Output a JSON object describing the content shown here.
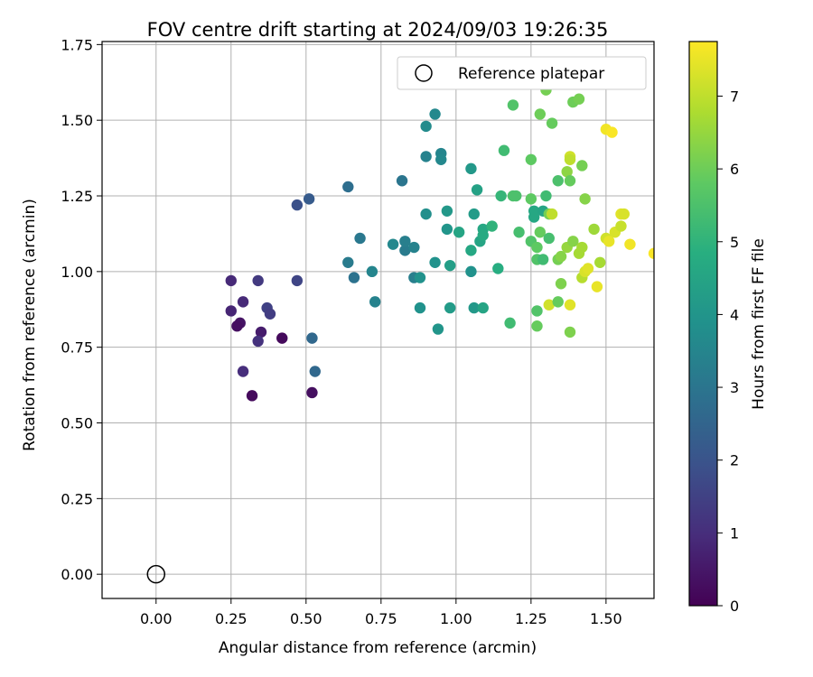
{
  "chart_data": {
    "type": "scatter",
    "title": "FOV centre drift starting at 2024/09/03 19:26:35",
    "xlabel": "Angular distance from reference (arcmin)",
    "ylabel": "Rotation from reference (arcmin)",
    "xlim": [
      -0.18,
      1.66
    ],
    "ylim": [
      -0.08,
      1.76
    ],
    "xticks": [
      {
        "value": 0.0,
        "label": "0.00"
      },
      {
        "value": 0.25,
        "label": "0.25"
      },
      {
        "value": 0.5,
        "label": "0.50"
      },
      {
        "value": 0.75,
        "label": "0.75"
      },
      {
        "value": 1.0,
        "label": "1.00"
      },
      {
        "value": 1.25,
        "label": "1.25"
      },
      {
        "value": 1.5,
        "label": "1.50"
      }
    ],
    "yticks": [
      {
        "value": 0.0,
        "label": "0.00"
      },
      {
        "value": 0.25,
        "label": "0.25"
      },
      {
        "value": 0.5,
        "label": "0.50"
      },
      {
        "value": 0.75,
        "label": "0.75"
      },
      {
        "value": 1.0,
        "label": "1.00"
      },
      {
        "value": 1.25,
        "label": "1.25"
      },
      {
        "value": 1.5,
        "label": "1.50"
      },
      {
        "value": 1.75,
        "label": "1.75"
      }
    ],
    "grid": true,
    "colormap": "viridis",
    "colorbar": {
      "label": "Hours from first FF file",
      "range": [
        0,
        7.75
      ],
      "ticks": [
        {
          "value": 0,
          "label": "0"
        },
        {
          "value": 1,
          "label": "1"
        },
        {
          "value": 2,
          "label": "2"
        },
        {
          "value": 3,
          "label": "3"
        },
        {
          "value": 4,
          "label": "4"
        },
        {
          "value": 5,
          "label": "5"
        },
        {
          "value": 6,
          "label": "6"
        },
        {
          "value": 7,
          "label": "7"
        }
      ]
    },
    "legend": {
      "placement": "top-right",
      "entries": [
        {
          "label": "Reference platepar",
          "marker": "open-circle"
        }
      ]
    },
    "reference_point": {
      "x": 0.0,
      "y": 0.0
    },
    "points": [
      [
        0.25,
        0.97,
        0.9
      ],
      [
        0.25,
        0.87,
        0.8
      ],
      [
        0.28,
        0.83,
        0.4
      ],
      [
        0.27,
        0.82,
        0.3
      ],
      [
        0.29,
        0.9,
        0.9
      ],
      [
        0.34,
        0.97,
        1.3
      ],
      [
        0.37,
        0.88,
        1.5
      ],
      [
        0.38,
        0.86,
        1.4
      ],
      [
        0.35,
        0.8,
        0.6
      ],
      [
        0.34,
        0.77,
        1.1
      ],
      [
        0.29,
        0.67,
        1.0
      ],
      [
        0.32,
        0.59,
        0.2
      ],
      [
        0.42,
        0.78,
        0.2
      ],
      [
        0.47,
        0.97,
        1.6
      ],
      [
        0.47,
        1.22,
        1.9
      ],
      [
        0.51,
        1.24,
        2.2
      ],
      [
        0.52,
        0.78,
        2.6
      ],
      [
        0.52,
        0.6,
        0.3
      ],
      [
        0.53,
        0.67,
        2.6
      ],
      [
        0.64,
        1.28,
        2.8
      ],
      [
        0.64,
        1.03,
        3.2
      ],
      [
        0.66,
        0.98,
        2.9
      ],
      [
        0.68,
        1.11,
        3.1
      ],
      [
        0.72,
        1.0,
        3.5
      ],
      [
        0.73,
        0.9,
        3.4
      ],
      [
        0.79,
        1.09,
        3.6
      ],
      [
        0.82,
        1.3,
        3.0
      ],
      [
        0.83,
        1.07,
        3.2
      ],
      [
        0.83,
        1.1,
        3.3
      ],
      [
        0.86,
        1.08,
        3.4
      ],
      [
        0.86,
        0.98,
        3.3
      ],
      [
        0.88,
        0.98,
        3.9
      ],
      [
        0.88,
        0.88,
        3.9
      ],
      [
        0.9,
        1.48,
        3.7
      ],
      [
        0.9,
        1.19,
        3.8
      ],
      [
        0.9,
        1.38,
        3.4
      ],
      [
        0.93,
        1.52,
        3.6
      ],
      [
        0.93,
        1.03,
        3.9
      ],
      [
        0.94,
        0.81,
        4.0
      ],
      [
        0.95,
        1.39,
        3.5
      ],
      [
        0.95,
        1.37,
        3.6
      ],
      [
        0.97,
        1.2,
        4.1
      ],
      [
        0.97,
        1.14,
        4.0
      ],
      [
        0.98,
        0.88,
        4.2
      ],
      [
        0.98,
        1.02,
        4.3
      ],
      [
        1.01,
        1.13,
        4.5
      ],
      [
        1.05,
        1.34,
        4.1
      ],
      [
        1.05,
        1.07,
        4.6
      ],
      [
        1.05,
        1.0,
        3.9
      ],
      [
        1.06,
        1.19,
        4.2
      ],
      [
        1.06,
        0.88,
        4.1
      ],
      [
        1.07,
        1.27,
        4.4
      ],
      [
        1.08,
        1.1,
        4.5
      ],
      [
        1.09,
        1.14,
        4.6
      ],
      [
        1.09,
        1.12,
        4.7
      ],
      [
        1.09,
        0.88,
        4.5
      ],
      [
        1.12,
        1.15,
        5.0
      ],
      [
        1.14,
        1.01,
        4.8
      ],
      [
        1.15,
        1.25,
        5.1
      ],
      [
        1.16,
        1.4,
        5.3
      ],
      [
        1.18,
        0.83,
        5.3
      ],
      [
        1.19,
        1.25,
        5.5
      ],
      [
        1.19,
        1.55,
        5.6
      ],
      [
        1.2,
        1.25,
        5.5
      ],
      [
        1.21,
        1.13,
        5.4
      ],
      [
        1.25,
        1.24,
        5.8
      ],
      [
        1.25,
        1.37,
        5.8
      ],
      [
        1.25,
        1.1,
        5.6
      ],
      [
        1.26,
        1.18,
        4.6
      ],
      [
        1.26,
        1.2,
        4.6
      ],
      [
        1.27,
        1.04,
        5.6
      ],
      [
        1.27,
        0.87,
        5.6
      ],
      [
        1.27,
        0.82,
        5.9
      ],
      [
        1.27,
        1.08,
        5.8
      ],
      [
        1.28,
        1.13,
        5.9
      ],
      [
        1.28,
        1.52,
        6.0
      ],
      [
        1.29,
        1.2,
        4.5
      ],
      [
        1.29,
        1.04,
        5.3
      ],
      [
        1.3,
        1.25,
        5.3
      ],
      [
        1.3,
        1.6,
        6.1
      ],
      [
        1.31,
        1.19,
        6.1
      ],
      [
        1.31,
        0.89,
        7.2
      ],
      [
        1.31,
        1.11,
        5.4
      ],
      [
        1.32,
        1.19,
        7.0
      ],
      [
        1.32,
        1.49,
        5.9
      ],
      [
        1.34,
        1.3,
        5.5
      ],
      [
        1.34,
        1.04,
        6.1
      ],
      [
        1.34,
        0.9,
        5.9
      ],
      [
        1.35,
        0.96,
        6.2
      ],
      [
        1.35,
        1.05,
        6.3
      ],
      [
        1.37,
        1.08,
        6.5
      ],
      [
        1.37,
        1.33,
        6.4
      ],
      [
        1.38,
        1.38,
        7.2
      ],
      [
        1.38,
        1.37,
        7.0
      ],
      [
        1.38,
        1.3,
        5.9
      ],
      [
        1.38,
        0.8,
        6.2
      ],
      [
        1.38,
        0.89,
        7.4
      ],
      [
        1.39,
        1.1,
        6.3
      ],
      [
        1.39,
        1.56,
        6.0
      ],
      [
        1.41,
        1.57,
        6.1
      ],
      [
        1.41,
        1.06,
        6.7
      ],
      [
        1.42,
        1.35,
        6.1
      ],
      [
        1.42,
        1.08,
        6.7
      ],
      [
        1.42,
        0.98,
        6.9
      ],
      [
        1.43,
        1.24,
        6.3
      ],
      [
        1.43,
        1.0,
        7.3
      ],
      [
        1.44,
        1.01,
        7.4
      ],
      [
        1.46,
        1.14,
        6.6
      ],
      [
        1.47,
        0.95,
        7.5
      ],
      [
        1.48,
        1.03,
        6.7
      ],
      [
        1.5,
        1.47,
        7.6
      ],
      [
        1.5,
        1.11,
        7.2
      ],
      [
        1.51,
        1.1,
        7.5
      ],
      [
        1.52,
        1.46,
        7.7
      ],
      [
        1.53,
        1.13,
        7.3
      ],
      [
        1.55,
        1.15,
        7.1
      ],
      [
        1.55,
        1.19,
        7.4
      ],
      [
        1.56,
        1.19,
        7.3
      ],
      [
        1.58,
        1.09,
        7.6
      ],
      [
        1.66,
        1.06,
        7.7
      ]
    ]
  }
}
